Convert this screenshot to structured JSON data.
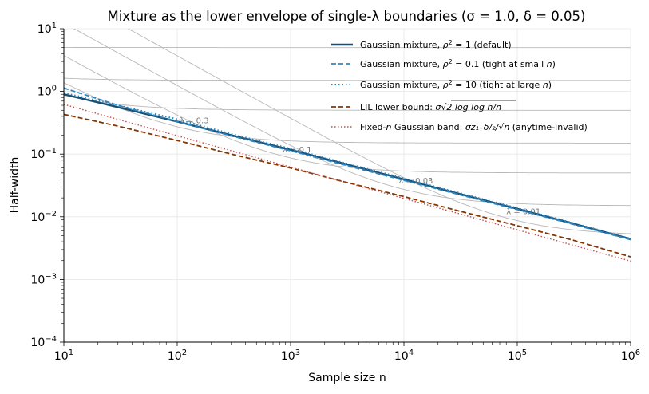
{
  "chart_data": {
    "type": "line",
    "title": "Mixture as the lower envelope of single-λ boundaries  (σ = 1.0, δ = 0.05)",
    "xlabel": "Sample size n",
    "ylabel": "Half-width",
    "xscale": "log",
    "yscale": "log",
    "xlim": [
      10,
      1000000
    ],
    "ylim": [
      0.0001,
      10
    ],
    "grid": true,
    "legend_position": "top-right",
    "x_ticks": [
      {
        "value": 10,
        "base": "10",
        "exp": "1"
      },
      {
        "value": 100,
        "base": "10",
        "exp": "2"
      },
      {
        "value": 1000,
        "base": "10",
        "exp": "3"
      },
      {
        "value": 10000,
        "base": "10",
        "exp": "4"
      },
      {
        "value": 100000,
        "base": "10",
        "exp": "5"
      },
      {
        "value": 1000000,
        "base": "10",
        "exp": "6"
      }
    ],
    "y_ticks": [
      {
        "value": 0.0001,
        "base": "10",
        "exp": "−4"
      },
      {
        "value": 0.001,
        "base": "10",
        "exp": "−3"
      },
      {
        "value": 0.01,
        "base": "10",
        "exp": "−2"
      },
      {
        "value": 0.1,
        "base": "10",
        "exp": "−1"
      },
      {
        "value": 1,
        "base": "10",
        "exp": "0"
      },
      {
        "value": 10,
        "base": "10",
        "exp": "1"
      }
    ],
    "series": [
      {
        "name": "Gaussian mixture, ρ² = 1 (default)",
        "color": "#1b4f72",
        "style": "solid",
        "x": [
          10,
          30,
          100,
          300,
          1000,
          3000,
          10000,
          30000,
          100000,
          300000,
          1000000
        ],
        "y": [
          0.9,
          0.56,
          0.33,
          0.2,
          0.117,
          0.07,
          0.0395,
          0.0235,
          0.0134,
          0.0079,
          0.0044
        ]
      },
      {
        "name": "Gaussian mixture, ρ² = 0.1 (tight at small n)",
        "color": "#2e86c1",
        "style": "dashed",
        "x": [
          10,
          30,
          100,
          300,
          1000,
          3000,
          10000,
          30000,
          100000,
          300000,
          1000000
        ],
        "y": [
          1.13,
          0.6,
          0.33,
          0.195,
          0.113,
          0.067,
          0.038,
          0.0228,
          0.013,
          0.0077,
          0.0043
        ]
      },
      {
        "name": "Gaussian mixture, ρ² = 10 (tight at large n)",
        "color": "#2e86c1",
        "style": "dotted",
        "x": [
          10,
          30,
          100,
          300,
          1000,
          3000,
          10000,
          30000,
          100000,
          300000,
          1000000
        ],
        "y": [
          0.95,
          0.6,
          0.36,
          0.21,
          0.122,
          0.072,
          0.041,
          0.0243,
          0.0138,
          0.0081,
          0.0045
        ]
      },
      {
        "name": "LIL lower bound: σ√(2 log log n/n)",
        "color": "#873600",
        "style": "dashed",
        "x": [
          10,
          30,
          100,
          300,
          1000,
          3000,
          10000,
          30000,
          100000,
          300000,
          1000000
        ],
        "y": [
          0.43,
          0.28,
          0.165,
          0.1,
          0.06,
          0.036,
          0.021,
          0.0125,
          0.0072,
          0.0043,
          0.0023
        ]
      },
      {
        "name": "Fixed-n Gaussian band: σz₁₋δ/₂/√n  (anytime-invalid)",
        "color": "#c0504d",
        "style": "dotted",
        "x": [
          10,
          1000000
        ],
        "y": [
          0.62,
          0.00196
        ]
      }
    ],
    "single_lambda_boundaries": [
      {
        "lambda": 0.3,
        "label": "λ = 0.3",
        "label_x": 105,
        "label_y": 0.31
      },
      {
        "lambda": 0.1,
        "label": "λ = 0.1",
        "label_x": 850,
        "label_y": 0.106
      },
      {
        "lambda": 0.03,
        "label": "λ = 0.03",
        "label_x": 9000,
        "label_y": 0.034
      },
      {
        "lambda": 0.01,
        "label": "λ = 0.01",
        "label_x": 80000,
        "label_y": 0.011
      }
    ],
    "single_lambda_extra": [
      1,
      3,
      10
    ],
    "legend_labels": {
      "s1": {
        "pre": "Gaussian mixture, ",
        "sym": "ρ",
        "sup": "2",
        "post": " = 1 (default)"
      },
      "s2": {
        "pre": "Gaussian mixture, ",
        "sym": "ρ",
        "sup": "2",
        "post": " = 0.1 (tight at small ",
        "n": "n",
        "end": ")"
      },
      "s3": {
        "pre": "Gaussian mixture, ",
        "sym": "ρ",
        "sup": "2",
        "post": " = 10 (tight at large ",
        "n": "n",
        "end": ")"
      },
      "s4": {
        "pre": "LIL lower bound: ",
        "expr": "σ√2 log log n/n"
      },
      "s5": {
        "pre": "Fixed-",
        "n": "n",
        "mid": " Gaussian band: ",
        "expr": "σz₁₋δ/₂/√n",
        "post": "  (anytime-invalid)"
      }
    }
  }
}
